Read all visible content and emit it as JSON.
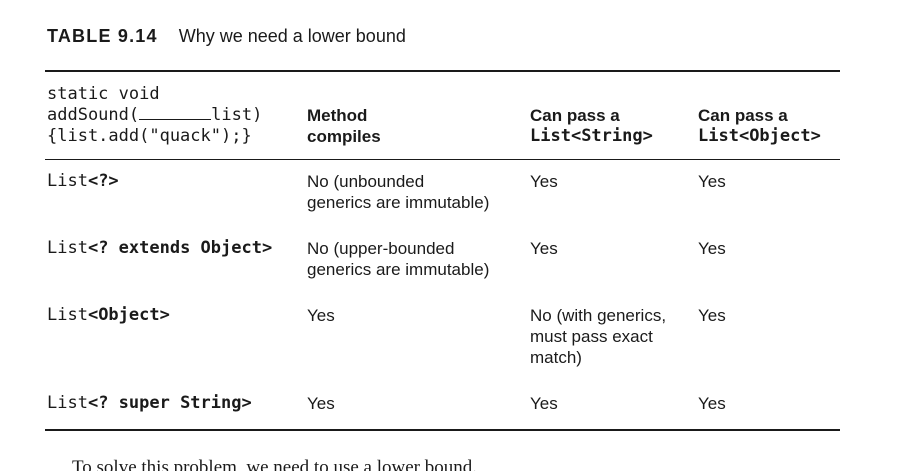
{
  "caption": {
    "label": "TABLE 9.14",
    "title": "Why we need a lower bound"
  },
  "header": {
    "col1": {
      "line1": "static void",
      "line2a": "addSound(",
      "line2b": "list)",
      "line3": "{list.add(\"quack\");}"
    },
    "col2": {
      "line1": "Method",
      "line2": "compiles"
    },
    "col3": {
      "line1": "Can pass a",
      "line2_prefix": "List",
      "line2_type": "<String>"
    },
    "col4": {
      "line1": "Can pass a",
      "line2_prefix": "List",
      "line2_type": "<Object>"
    }
  },
  "rows": [
    {
      "type_prefix": "List",
      "type_rest": "<?>",
      "compiles": [
        "No (unbounded",
        "generics are immutable)"
      ],
      "pass_string": [
        "Yes"
      ],
      "pass_object": "Yes"
    },
    {
      "type_prefix": "List",
      "type_rest": "<? extends Object>",
      "compiles": [
        "No (upper-bounded",
        "generics are immutable)"
      ],
      "pass_string": [
        "Yes"
      ],
      "pass_object": "Yes"
    },
    {
      "type_prefix": "List",
      "type_rest": "<Object>",
      "compiles": [
        "Yes"
      ],
      "pass_string": [
        "No (with generics,",
        "must pass exact",
        "match)"
      ],
      "pass_object": "Yes"
    },
    {
      "type_prefix": "List",
      "type_rest": "<? super String>",
      "compiles": [
        "Yes"
      ],
      "pass_string": [
        "Yes"
      ],
      "pass_object": "Yes"
    }
  ],
  "footer": {
    "text": "To solve this problem, we need to use a lower bound."
  }
}
